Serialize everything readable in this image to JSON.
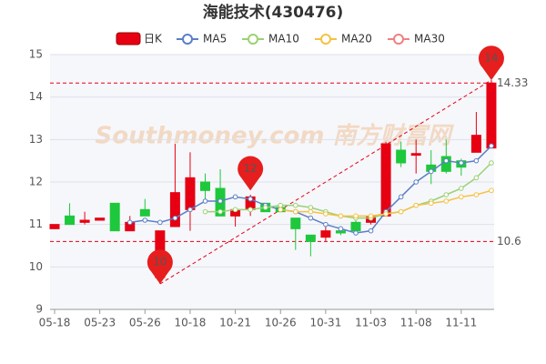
{
  "chart_data": {
    "type": "candlestick",
    "title": "海能技术(430476)",
    "watermark": "Southmoney.com 南方财富网",
    "categories": [
      "05-18",
      null,
      null,
      "05-23",
      null,
      null,
      "05-26",
      null,
      null,
      "10-18",
      null,
      null,
      "10-21",
      null,
      null,
      "10-26",
      null,
      null,
      "10-31",
      null,
      null,
      "11-03",
      null,
      null,
      "11-08",
      null,
      null,
      "11-11",
      null,
      null
    ],
    "candle_name": "日K",
    "up_color": "#e60012",
    "down_color": "#1ec83c",
    "open": [
      10.9,
      11.2,
      11.05,
      11.1,
      11.5,
      10.85,
      11.35,
      9.75,
      10.95,
      11.35,
      12.0,
      11.85,
      11.2,
      11.35,
      11.5,
      11.4,
      11.15,
      10.75,
      10.7,
      10.85,
      11.05,
      11.05,
      11.2,
      12.75,
      12.63,
      12.4,
      12.6,
      12.5,
      12.7,
      12.8
    ],
    "close": [
      11.0,
      11.0,
      11.1,
      11.15,
      10.85,
      11.05,
      11.2,
      10.85,
      11.75,
      12.1,
      11.8,
      11.2,
      11.35,
      11.65,
      11.3,
      11.3,
      10.9,
      10.6,
      10.85,
      10.8,
      10.85,
      11.2,
      12.9,
      12.45,
      12.67,
      12.25,
      12.25,
      12.35,
      13.1,
      14.33
    ],
    "high": [
      11.0,
      11.5,
      11.3,
      11.15,
      11.5,
      11.2,
      11.6,
      10.85,
      12.9,
      12.7,
      12.2,
      12.3,
      11.4,
      11.7,
      11.5,
      11.4,
      11.15,
      10.75,
      10.95,
      10.95,
      11.2,
      11.25,
      12.95,
      12.95,
      13.0,
      12.75,
      13.0,
      12.55,
      13.65,
      14.4
    ],
    "low": [
      10.9,
      11.0,
      11.0,
      11.1,
      10.85,
      10.85,
      11.2,
      9.6,
      10.95,
      10.85,
      11.6,
      11.2,
      10.95,
      11.2,
      11.3,
      11.3,
      10.4,
      10.25,
      10.6,
      10.75,
      10.8,
      11.0,
      11.2,
      12.35,
      12.2,
      11.95,
      12.2,
      12.15,
      12.7,
      12.8
    ],
    "series": [
      {
        "name": "MA5",
        "color": "#5b7fc6",
        "values": [
          null,
          null,
          null,
          null,
          null,
          11.05,
          11.1,
          11.05,
          11.15,
          11.35,
          11.55,
          11.55,
          11.65,
          11.6,
          11.45,
          11.35,
          11.3,
          11.15,
          11.0,
          10.9,
          10.8,
          10.85,
          11.3,
          11.65,
          12.0,
          12.25,
          12.5,
          12.45,
          12.5,
          12.85
        ]
      },
      {
        "name": "MA10",
        "color": "#9bd174",
        "values": [
          null,
          null,
          null,
          null,
          null,
          null,
          null,
          null,
          null,
          null,
          11.3,
          11.3,
          11.35,
          11.35,
          11.4,
          11.45,
          11.45,
          11.4,
          11.3,
          11.2,
          11.15,
          11.15,
          11.25,
          11.3,
          11.45,
          11.55,
          11.7,
          11.85,
          12.1,
          12.45
        ]
      },
      {
        "name": "MA20",
        "color": "#f5c242",
        "values": [
          null,
          null,
          null,
          null,
          null,
          null,
          null,
          null,
          null,
          null,
          null,
          null,
          null,
          null,
          null,
          11.35,
          11.3,
          11.3,
          11.25,
          11.2,
          11.2,
          11.2,
          11.25,
          11.3,
          11.45,
          11.5,
          11.55,
          11.65,
          11.7,
          11.8
        ]
      },
      {
        "name": "MA30",
        "color": "#f08080",
        "values": [
          null,
          null,
          null,
          null,
          null,
          null,
          null,
          null,
          null,
          null,
          null,
          null,
          null,
          null,
          null,
          null,
          null,
          null,
          null,
          null,
          null,
          null,
          null,
          null,
          null,
          null,
          null,
          null,
          null,
          null
        ]
      }
    ],
    "ylim": [
      9,
      15
    ],
    "yticks": [
      9,
      10,
      11,
      12,
      13,
      14,
      15
    ],
    "grid": true,
    "hlines": [
      14.33,
      10.6
    ],
    "hline_color": "#e60012",
    "markers": [
      {
        "index": 7,
        "value": 9.6,
        "label": "10"
      },
      {
        "index": 13,
        "value": 11.8,
        "label": "12"
      },
      {
        "index": 29,
        "value": 14.4,
        "label": "14"
      }
    ]
  }
}
